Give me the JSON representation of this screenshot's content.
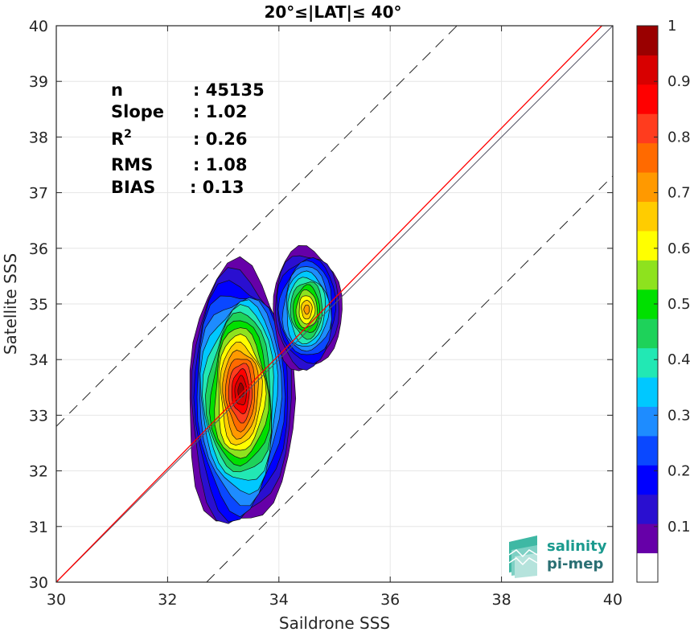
{
  "chart_data": {
    "type": "contour",
    "title": "20°≤|LAT|≤ 40°",
    "xlabel": "Saildrone SSS",
    "ylabel": "Satellite SSS",
    "xlim": [
      30,
      40
    ],
    "ylim": [
      30,
      40
    ],
    "xticks": [
      "30",
      "32",
      "34",
      "36",
      "38",
      "40"
    ],
    "yticks": [
      "30",
      "31",
      "32",
      "33",
      "34",
      "35",
      "36",
      "37",
      "38",
      "39",
      "40"
    ],
    "grid": true,
    "stats": [
      {
        "label": "n",
        "value": ": 45135"
      },
      {
        "label": "Slope",
        "value": ": 1.02"
      },
      {
        "label": "R",
        "sup": "2",
        "value": ": 0.26"
      },
      {
        "label": "RMS",
        "value": ": 1.08"
      },
      {
        "label": "BIAS",
        "value": ": 0.13"
      }
    ],
    "lines": {
      "one_to_one": {
        "slope": 1,
        "intercept": 0,
        "color": "#555566"
      },
      "fit": {
        "slope": 1.02,
        "intercept": -0.6,
        "color": "#ff0000"
      },
      "bounds_dashed": [
        {
          "offset": 2.8
        },
        {
          "offset": -2.7
        }
      ]
    },
    "density_centers": [
      {
        "x": 33.3,
        "y": 33.3,
        "peak": 1.0
      },
      {
        "x": 34.5,
        "y": 34.9,
        "peak": 0.7
      }
    ],
    "colorbar": {
      "range": [
        0,
        1
      ],
      "ticks": [
        "0.1",
        "0.2",
        "0.3",
        "0.4",
        "0.5",
        "0.6",
        "0.7",
        "0.8",
        "0.9",
        "1"
      ],
      "colors": [
        "#ffffff",
        "#6600a8",
        "#2a0fd0",
        "#0000ff",
        "#0a48ff",
        "#1e8cff",
        "#00c8ff",
        "#22e8b4",
        "#1ed25a",
        "#00e000",
        "#8ee21e",
        "#ffff00",
        "#ffcc00",
        "#ff9900",
        "#ff6a00",
        "#ff3c1e",
        "#ff0000",
        "#d80000",
        "#9a0000"
      ]
    }
  },
  "logo": {
    "line1": "salinity",
    "line2": "pi-mep"
  }
}
